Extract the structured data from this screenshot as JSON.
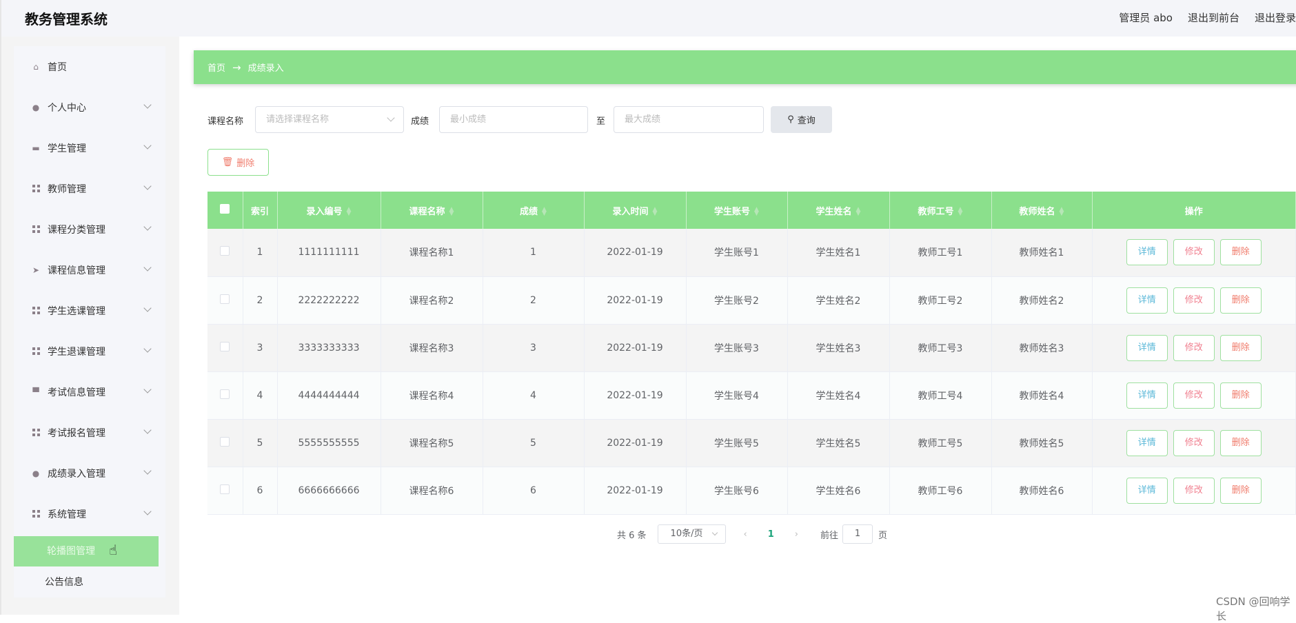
{
  "header": {
    "title": "教务管理系统",
    "user": "管理员 abo",
    "front": "退出到前台",
    "logout": "退出登录"
  },
  "sidebar": {
    "items": [
      {
        "label": "首页",
        "icon": "home-icon"
      },
      {
        "label": "个人中心",
        "icon": "user-icon"
      },
      {
        "label": "学生管理",
        "icon": "briefcase-icon"
      },
      {
        "label": "教师管理",
        "icon": "grid-icon"
      },
      {
        "label": "课程分类管理",
        "icon": "grid-icon"
      },
      {
        "label": "课程信息管理",
        "icon": "send-icon"
      },
      {
        "label": "学生选课管理",
        "icon": "grid-icon"
      },
      {
        "label": "学生退课管理",
        "icon": "grid-icon"
      },
      {
        "label": "考试信息管理",
        "icon": "monitor-icon"
      },
      {
        "label": "考试报名管理",
        "icon": "grid-icon"
      },
      {
        "label": "成绩录入管理",
        "icon": "bulb-icon"
      },
      {
        "label": "系统管理",
        "icon": "grid-icon"
      }
    ],
    "sub_items": [
      "轮播图管理",
      "公告信息"
    ]
  },
  "breadcrumb": {
    "home": "首页",
    "arrow": "→",
    "current": "成绩录入"
  },
  "search": {
    "course_label": "课程名称",
    "course_placeholder": "请选择课程名称",
    "score_label": "成绩",
    "min_placeholder": "最小成绩",
    "to": "至",
    "max_placeholder": "最大成绩",
    "query": "查询"
  },
  "toolbar": {
    "delete": "删除"
  },
  "table": {
    "columns": [
      "索引",
      "录入编号",
      "课程名称",
      "成绩",
      "录入时间",
      "学生账号",
      "学生姓名",
      "教师工号",
      "教师姓名",
      "操作"
    ],
    "rows": [
      [
        "1",
        "1111111111",
        "课程名称1",
        "1",
        "2022-01-19",
        "学生账号1",
        "学生姓名1",
        "教师工号1",
        "教师姓名1"
      ],
      [
        "2",
        "2222222222",
        "课程名称2",
        "2",
        "2022-01-19",
        "学生账号2",
        "学生姓名2",
        "教师工号2",
        "教师姓名2"
      ],
      [
        "3",
        "3333333333",
        "课程名称3",
        "3",
        "2022-01-19",
        "学生账号3",
        "学生姓名3",
        "教师工号3",
        "教师姓名3"
      ],
      [
        "4",
        "4444444444",
        "课程名称4",
        "4",
        "2022-01-19",
        "学生账号4",
        "学生姓名4",
        "教师工号4",
        "教师姓名4"
      ],
      [
        "5",
        "5555555555",
        "课程名称5",
        "5",
        "2022-01-19",
        "学生账号5",
        "学生姓名5",
        "教师工号5",
        "教师姓名5"
      ],
      [
        "6",
        "6666666666",
        "课程名称6",
        "6",
        "2022-01-19",
        "学生账号6",
        "学生姓名6",
        "教师工号6",
        "教师姓名6"
      ]
    ],
    "actions": [
      "详情",
      "修改",
      "删除"
    ]
  },
  "pagination": {
    "total": "共 6 条",
    "page_size": "10条/页",
    "current": "1",
    "goto": "前往",
    "goto_value": "1",
    "page_suffix": "页"
  },
  "watermark": "CSDN @回响学长",
  "colors": {
    "accent": "#8be08c",
    "detail": "#5bb8d8",
    "edit": "#f08090",
    "delete": "#f07c6c",
    "active_page": "#1aa37a"
  }
}
